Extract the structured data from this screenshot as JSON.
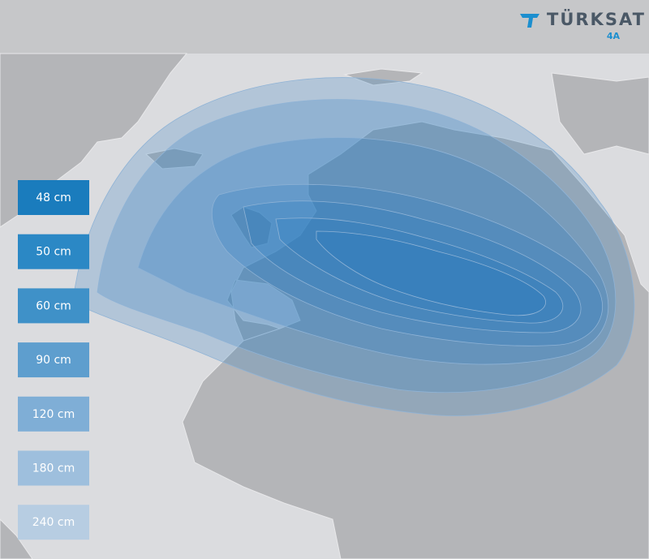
{
  "header": {
    "brand": "TÜRKSAT",
    "model": "4A"
  },
  "legend": {
    "items": [
      "48 cm",
      "50 cm",
      "60 cm",
      "90 cm",
      "120 cm",
      "180 cm",
      "240 cm"
    ]
  }
}
